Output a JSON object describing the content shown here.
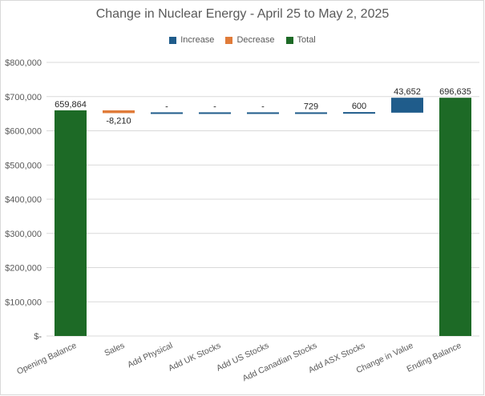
{
  "chart_data": {
    "type": "waterfall",
    "title": "Change in Nuclear Energy - April 25 to May 2, 2025",
    "legend": [
      {
        "name": "Increase",
        "color": "#1f5c8b"
      },
      {
        "name": "Decrease",
        "color": "#e07b39"
      },
      {
        "name": "Total",
        "color": "#1d6a26"
      }
    ],
    "legend_position": "top",
    "categories": [
      "Opening Balance",
      "Sales",
      "Add Physical",
      "Add UK Stocks",
      "Add US Stocks",
      "Add  Canadian Stocks",
      "Add ASX Stocks",
      "Change in Value",
      "Ending Balance"
    ],
    "values": [
      659864,
      -8210,
      0,
      0,
      0,
      729,
      600,
      43652,
      696635
    ],
    "kinds": [
      "total",
      "decrease",
      "increase",
      "increase",
      "increase",
      "increase",
      "increase",
      "increase",
      "total"
    ],
    "data_labels": [
      "659,864",
      "-8,210",
      "-",
      "-",
      "-",
      "729",
      "600",
      "43,652",
      "696,635"
    ],
    "y_ticks": [
      0,
      100000,
      200000,
      300000,
      400000,
      500000,
      600000,
      700000,
      800000
    ],
    "y_tick_labels": [
      "$-",
      "$100,000",
      "$200,000",
      "$300,000",
      "$400,000",
      "$500,000",
      "$600,000",
      "$700,000",
      "$800,000"
    ],
    "ylim": [
      0,
      800000
    ],
    "grid": true
  }
}
